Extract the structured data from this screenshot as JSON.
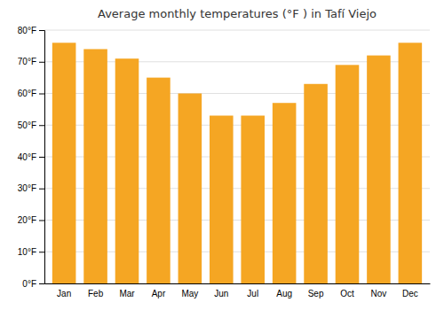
{
  "chart_data": {
    "type": "bar",
    "title": "Average monthly temperatures (°F ) in Tafí Viejo",
    "categories": [
      "Jan",
      "Feb",
      "Mar",
      "Apr",
      "May",
      "Jun",
      "Jul",
      "Aug",
      "Sep",
      "Oct",
      "Nov",
      "Dec"
    ],
    "values": [
      76,
      74,
      71,
      65,
      60,
      53,
      53,
      57,
      63,
      69,
      72,
      76
    ],
    "color": "#F5A623",
    "ylim": [
      0,
      80
    ],
    "yticks": [
      {
        "value": 0,
        "label": "0°F"
      },
      {
        "value": 10,
        "label": "10°F"
      },
      {
        "value": 20,
        "label": "20°F"
      },
      {
        "value": 30,
        "label": "30°F"
      },
      {
        "value": 40,
        "label": "40°F"
      },
      {
        "value": 50,
        "label": "50°F"
      },
      {
        "value": 60,
        "label": "60°F"
      },
      {
        "value": 70,
        "label": "70°F"
      },
      {
        "value": 80,
        "label": "80°F"
      }
    ],
    "grid": true
  }
}
